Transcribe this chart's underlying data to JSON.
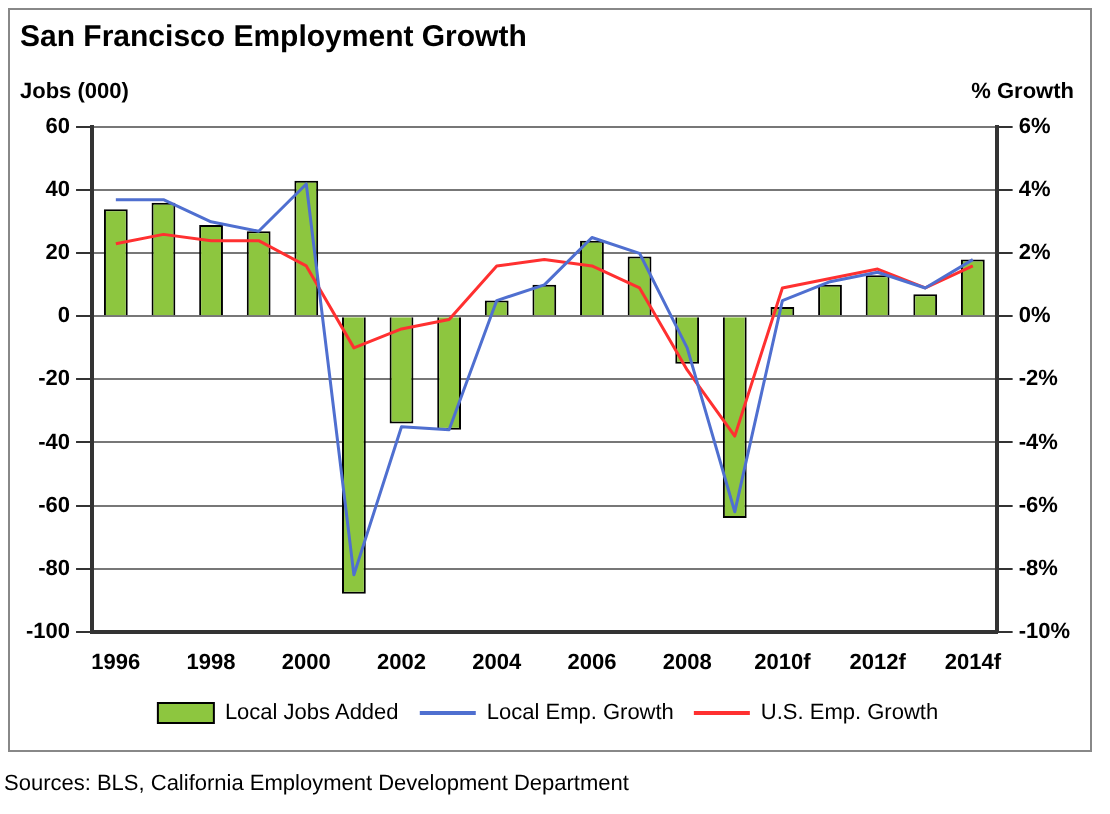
{
  "chart_data": {
    "type": "bar",
    "title": "San Francisco Employment Growth",
    "ylabel": "Jobs (000)",
    "y2label": "% Growth",
    "categories": [
      "1996",
      null,
      "1998",
      null,
      "2000",
      null,
      "2002",
      null,
      "2004",
      null,
      "2006",
      null,
      "2008",
      null,
      "2010f",
      null,
      "2012f",
      null,
      "2014f"
    ],
    "series": [
      {
        "name": "Local Jobs Added",
        "color": "#8dc63f",
        "values": [
          34,
          36,
          29,
          27,
          43,
          -88,
          -34,
          -36,
          5,
          10,
          24,
          19,
          -15,
          -64,
          3,
          10,
          13,
          7,
          18
        ]
      },
      {
        "name": "Local Emp. Growth",
        "type": "line",
        "axis": "y2",
        "color": "#4f6fd0",
        "values": [
          3.7,
          3.7,
          3.0,
          2.7,
          4.2,
          -8.2,
          -3.5,
          -3.6,
          0.5,
          1.0,
          2.5,
          2.0,
          -1.0,
          -6.2,
          0.5,
          1.1,
          1.4,
          0.9,
          1.8
        ]
      },
      {
        "name": "U.S. Emp. Growth",
        "type": "line",
        "axis": "y2",
        "color": "#ff3030",
        "values": [
          2.3,
          2.6,
          2.4,
          2.4,
          1.6,
          -1.0,
          -0.4,
          -0.1,
          1.6,
          1.8,
          1.6,
          0.9,
          -1.7,
          -3.8,
          0.9,
          1.2,
          1.5,
          0.9,
          1.6
        ]
      }
    ],
    "ylim": [
      -100,
      60
    ],
    "yticks": [
      -100,
      -80,
      -60,
      -40,
      -20,
      0,
      20,
      40,
      60
    ],
    "y2lim": [
      -10,
      6
    ],
    "y2ticks": [
      {
        "value": -10,
        "label": "-10%"
      },
      {
        "value": -8,
        "label": "-8%"
      },
      {
        "value": -6,
        "label": "-6%"
      },
      {
        "value": -4,
        "label": "-4%"
      },
      {
        "value": -2,
        "label": "-2%"
      },
      {
        "value": 0,
        "label": "0%"
      },
      {
        "value": 2,
        "label": "2%"
      },
      {
        "value": 4,
        "label": "4%"
      },
      {
        "value": 6,
        "label": "6%"
      }
    ],
    "grid": "y",
    "legend": "bottom",
    "marker": "none",
    "annotations": [
      "Sources: BLS, California Employment Development Department"
    ]
  }
}
